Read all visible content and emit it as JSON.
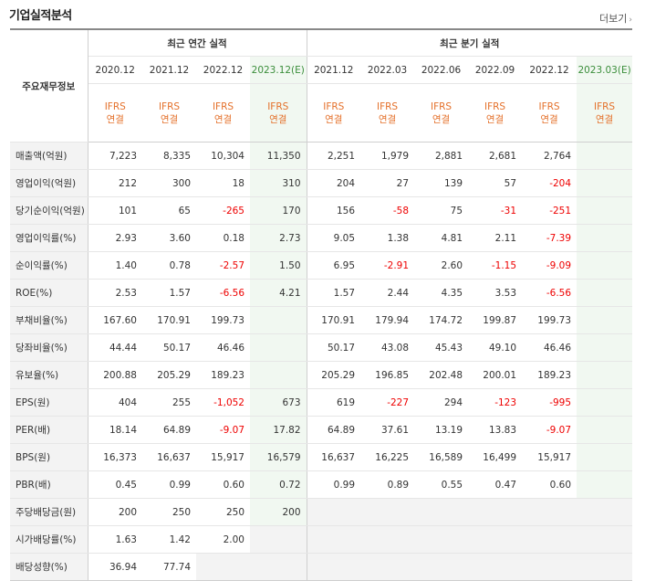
{
  "header": {
    "title": "기업실적분석",
    "more_label": "더보기"
  },
  "table": {
    "row_header_label": "주요재무정보",
    "annual_label": "최근 연간 실적",
    "quarter_label": "최근 분기 실적",
    "annual_periods": [
      "2020.12",
      "2021.12",
      "2022.12",
      "2023.12(E)"
    ],
    "quarter_periods": [
      "2021.12",
      "2022.03",
      "2022.06",
      "2022.09",
      "2022.12",
      "2023.03(E)"
    ],
    "ifrs_top": "IFRS",
    "ifrs_bottom": "연결",
    "rows": [
      {
        "label": "매출액(억원)",
        "annual": [
          "7,223",
          "8,335",
          "10,304",
          "11,350"
        ],
        "quarter": [
          "2,251",
          "1,979",
          "2,881",
          "2,681",
          "2,764",
          ""
        ]
      },
      {
        "label": "영업이익(억원)",
        "annual": [
          "212",
          "300",
          "18",
          "310"
        ],
        "quarter": [
          "204",
          "27",
          "139",
          "57",
          "-204",
          ""
        ]
      },
      {
        "label": "당기순이익(억원)",
        "annual": [
          "101",
          "65",
          "-265",
          "170"
        ],
        "quarter": [
          "156",
          "-58",
          "75",
          "-31",
          "-251",
          ""
        ]
      },
      {
        "label": "영업이익률(%)",
        "annual": [
          "2.93",
          "3.60",
          "0.18",
          "2.73"
        ],
        "quarter": [
          "9.05",
          "1.38",
          "4.81",
          "2.11",
          "-7.39",
          ""
        ]
      },
      {
        "label": "순이익률(%)",
        "annual": [
          "1.40",
          "0.78",
          "-2.57",
          "1.50"
        ],
        "quarter": [
          "6.95",
          "-2.91",
          "2.60",
          "-1.15",
          "-9.09",
          ""
        ]
      },
      {
        "label": "ROE(%)",
        "annual": [
          "2.53",
          "1.57",
          "-6.56",
          "4.21"
        ],
        "quarter": [
          "1.57",
          "2.44",
          "4.35",
          "3.53",
          "-6.56",
          ""
        ]
      },
      {
        "label": "부채비율(%)",
        "annual": [
          "167.60",
          "170.91",
          "199.73",
          ""
        ],
        "quarter": [
          "170.91",
          "179.94",
          "174.72",
          "199.87",
          "199.73",
          ""
        ]
      },
      {
        "label": "당좌비율(%)",
        "annual": [
          "44.44",
          "50.17",
          "46.46",
          ""
        ],
        "quarter": [
          "50.17",
          "43.08",
          "45.43",
          "49.10",
          "46.46",
          ""
        ]
      },
      {
        "label": "유보율(%)",
        "annual": [
          "200.88",
          "205.29",
          "189.23",
          ""
        ],
        "quarter": [
          "205.29",
          "196.85",
          "202.48",
          "200.01",
          "189.23",
          ""
        ]
      },
      {
        "label": "EPS(원)",
        "annual": [
          "404",
          "255",
          "-1,052",
          "673"
        ],
        "quarter": [
          "619",
          "-227",
          "294",
          "-123",
          "-995",
          ""
        ]
      },
      {
        "label": "PER(배)",
        "annual": [
          "18.14",
          "64.89",
          "-9.07",
          "17.82"
        ],
        "quarter": [
          "64.89",
          "37.61",
          "13.19",
          "13.83",
          "-9.07",
          ""
        ]
      },
      {
        "label": "BPS(원)",
        "annual": [
          "16,373",
          "16,637",
          "15,917",
          "16,579"
        ],
        "quarter": [
          "16,637",
          "16,225",
          "16,589",
          "16,499",
          "15,917",
          ""
        ]
      },
      {
        "label": "PBR(배)",
        "annual": [
          "0.45",
          "0.99",
          "0.60",
          "0.72"
        ],
        "quarter": [
          "0.99",
          "0.89",
          "0.55",
          "0.47",
          "0.60",
          ""
        ]
      },
      {
        "label": "주당배당금(원)",
        "annual": [
          "200",
          "250",
          "250",
          "200"
        ],
        "quarter": [
          "",
          "",
          "",
          "",
          "",
          ""
        ]
      },
      {
        "label": "시가배당률(%)",
        "annual": [
          "1.63",
          "1.42",
          "2.00",
          ""
        ],
        "quarter": [
          "",
          "",
          "",
          "",
          "",
          ""
        ]
      },
      {
        "label": "배당성향(%)",
        "annual": [
          "36.94",
          "77.74",
          "",
          ""
        ],
        "quarter": [
          "",
          "",
          "",
          "",
          "",
          ""
        ]
      }
    ]
  },
  "colors": {
    "ifrs": "#e4702a",
    "estimate_label": "#3b8e3b",
    "estimate_bg": "#f1f8f1",
    "negative": "#e00000"
  }
}
